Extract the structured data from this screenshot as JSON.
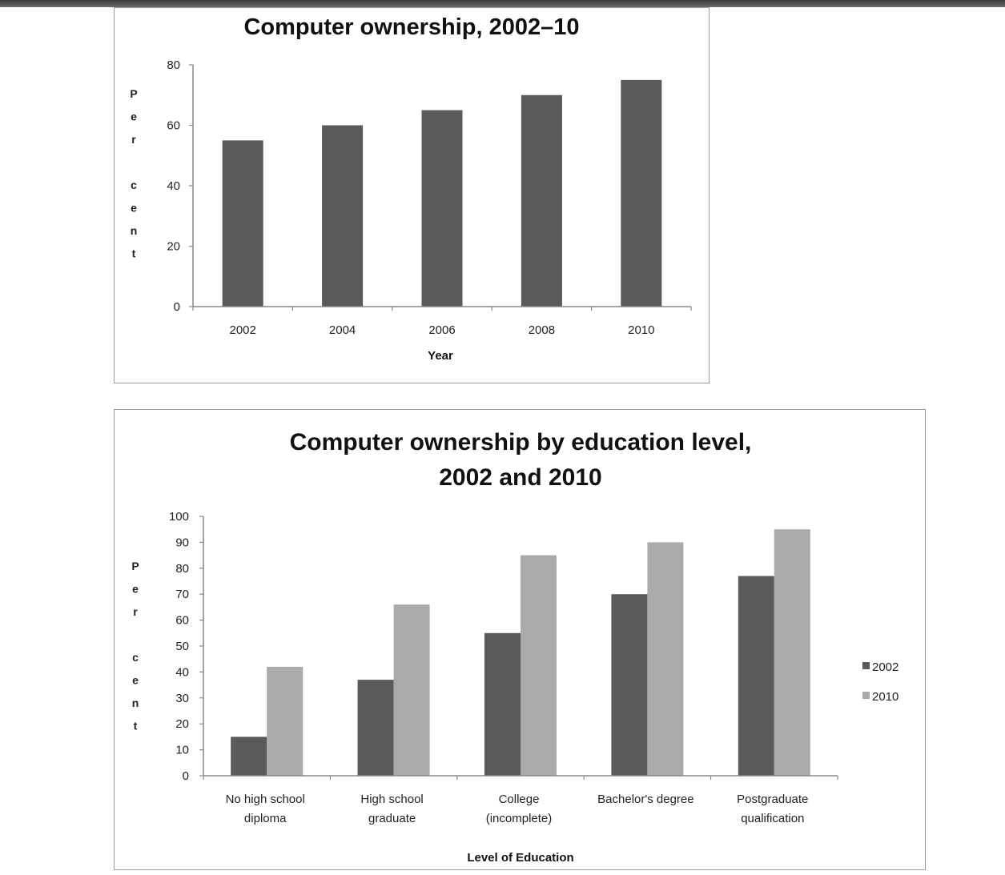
{
  "chart_data": [
    {
      "type": "bar",
      "title": "Computer ownership, 2002–10",
      "xlabel": "Year",
      "ylabel": "Per cent",
      "categories": [
        "2002",
        "2004",
        "2006",
        "2008",
        "2010"
      ],
      "values": [
        55,
        60,
        65,
        70,
        75
      ],
      "ylim": [
        0,
        80
      ],
      "yticks": [
        0,
        20,
        40,
        60,
        80
      ],
      "grid": false,
      "bar_color": "#5a5a5a"
    },
    {
      "type": "bar",
      "title_lines": [
        "Computer ownership by education level,",
        "2002 and 2010"
      ],
      "xlabel": "Level of Education",
      "ylabel": "Per cent",
      "categories": [
        [
          "No high school",
          "diploma"
        ],
        [
          "High school",
          "graduate"
        ],
        [
          "College",
          "(incomplete)"
        ],
        [
          "Bachelor's degree"
        ],
        [
          "Postgraduate",
          "qualification"
        ]
      ],
      "series": [
        {
          "name": "2002",
          "values": [
            15,
            37,
            55,
            70,
            77
          ],
          "color": "#5a5a5a"
        },
        {
          "name": "2010",
          "values": [
            42,
            66,
            85,
            90,
            95
          ],
          "color": "#aaaaaa"
        }
      ],
      "ylim": [
        0,
        100
      ],
      "yticks": [
        0,
        10,
        20,
        30,
        40,
        50,
        60,
        70,
        80,
        90,
        100
      ],
      "legend_position": "right",
      "grid": false
    }
  ]
}
